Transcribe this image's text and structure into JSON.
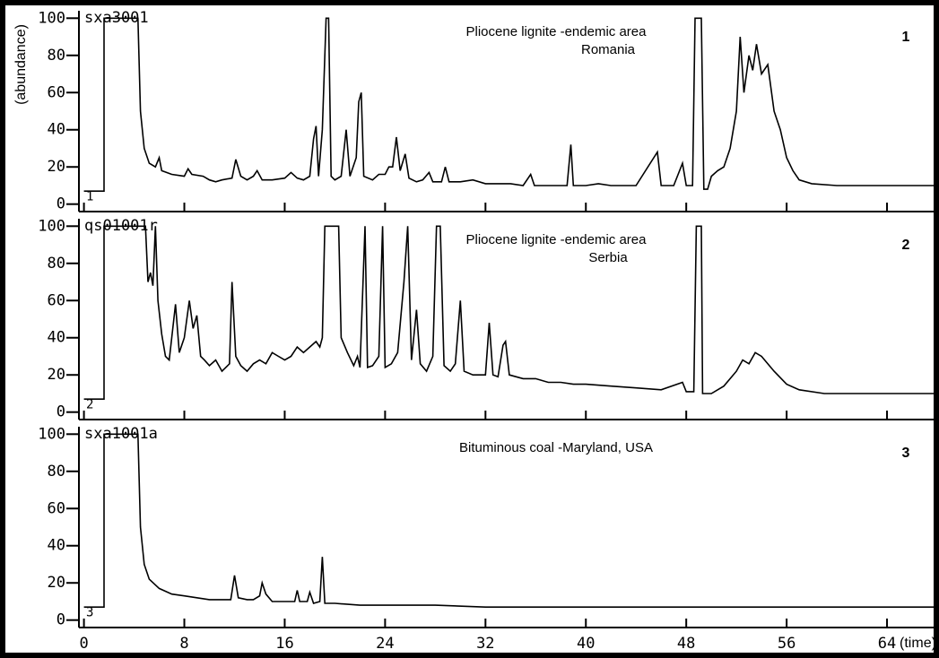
{
  "chart_data": [
    {
      "type": "line",
      "sample": "sxa3001",
      "ylabel": "(abundance)",
      "annotation": [
        "Pliocene lignite -endemic area",
        "Romania"
      ],
      "panel_label": "1",
      "trace_label": "1",
      "xlim": [
        -0.4,
        68
      ],
      "ylim": [
        -4,
        104
      ],
      "xticks": [
        0,
        8,
        16,
        24,
        32,
        40,
        48,
        56,
        64
      ],
      "yticks": [
        0,
        20,
        40,
        60,
        80,
        100
      ],
      "xtick_labels": false,
      "series": [
        {
          "color": "#000000",
          "x": [
            0,
            1.6,
            1.6,
            4.3,
            4.5,
            4.8,
            5.2,
            5.7,
            6.0,
            6.2,
            7,
            8,
            8.3,
            8.6,
            9.5,
            10,
            10.5,
            11,
            11.8,
            12.1,
            12.5,
            13,
            13.5,
            13.8,
            14.2,
            15,
            16,
            16.5,
            17,
            17.5,
            18,
            18.3,
            18.5,
            18.7,
            19,
            19.3,
            19.5,
            19.7,
            20,
            20.5,
            20.9,
            21.2,
            21.7,
            21.9,
            22.1,
            22.3,
            23,
            23.5,
            24,
            24.3,
            24.6,
            24.9,
            25.2,
            25.6,
            25.9,
            26.5,
            27,
            27.5,
            27.8,
            28.5,
            28.8,
            29.1,
            30,
            31,
            32,
            33,
            34,
            35,
            35.6,
            35.9,
            37,
            38.5,
            38.8,
            39,
            40,
            41,
            42,
            44,
            45.7,
            46,
            47,
            47.7,
            48,
            48.5,
            48.7,
            49.2,
            49.4,
            49.7,
            50,
            50.5,
            51,
            51.5,
            52,
            52.3,
            52.6,
            53,
            53.3,
            53.6,
            54,
            54.5,
            55,
            55.5,
            56,
            56.5,
            57,
            58,
            60,
            64,
            68
          ],
          "values": [
            7,
            7,
            100,
            100,
            50,
            30,
            22,
            20,
            25,
            18,
            16,
            15,
            19,
            16,
            15,
            13,
            12,
            13,
            14,
            24,
            15,
            13,
            15,
            18,
            13,
            13,
            14,
            17,
            14,
            13,
            15,
            35,
            42,
            15,
            40,
            100,
            100,
            15,
            13,
            15,
            40,
            15,
            25,
            55,
            60,
            15,
            13,
            16,
            16,
            20,
            20,
            36,
            18,
            27,
            14,
            12,
            13,
            17,
            12,
            12,
            20,
            12,
            12,
            13,
            11,
            11,
            11,
            10,
            16,
            10,
            10,
            10,
            32,
            10,
            10,
            11,
            10,
            10,
            28,
            10,
            10,
            22,
            10,
            10,
            100,
            100,
            8,
            8,
            15,
            18,
            20,
            30,
            50,
            90,
            60,
            80,
            72,
            86,
            70,
            75,
            50,
            40,
            25,
            18,
            13,
            11,
            10,
            10,
            10
          ]
        }
      ]
    },
    {
      "type": "line",
      "sample": "qs01001r",
      "annotation": [
        "Pliocene lignite -endemic area",
        "Serbia"
      ],
      "panel_label": "2",
      "trace_label": "2",
      "xlim": [
        -0.4,
        68
      ],
      "ylim": [
        -4,
        104
      ],
      "xticks": [
        0,
        8,
        16,
        24,
        32,
        40,
        48,
        56,
        64
      ],
      "yticks": [
        0,
        20,
        40,
        60,
        80,
        100
      ],
      "xtick_labels": false,
      "series": [
        {
          "color": "#000000",
          "x": [
            0,
            1.6,
            1.6,
            4.9,
            5.1,
            5.3,
            5.5,
            5.7,
            5.9,
            6.2,
            6.5,
            6.8,
            7,
            7.3,
            7.6,
            8,
            8.4,
            8.7,
            9,
            9.3,
            9.6,
            10,
            10.5,
            11,
            11.6,
            11.8,
            12.1,
            12.5,
            13,
            13.5,
            14,
            14.5,
            15,
            15.5,
            16,
            16.5,
            17,
            17.5,
            18,
            18.5,
            18.8,
            19,
            19.2,
            20.3,
            20.5,
            21,
            21.5,
            21.8,
            22,
            22.4,
            22.6,
            23,
            23.5,
            23.8,
            24,
            24.5,
            25,
            25.5,
            25.8,
            26.1,
            26.5,
            26.8,
            27.3,
            27.8,
            28.1,
            28.4,
            28.7,
            29.2,
            29.6,
            30,
            30.3,
            31,
            32,
            32.3,
            32.6,
            33,
            33.4,
            33.6,
            33.9,
            35,
            36,
            37,
            38,
            39,
            40,
            42,
            44,
            46,
            47.7,
            48,
            48.6,
            48.8,
            49.2,
            49.3,
            50,
            51,
            52,
            52.5,
            53,
            53.5,
            54,
            55,
            56,
            57,
            59,
            62,
            68
          ],
          "values": [
            7,
            7,
            100,
            100,
            70,
            75,
            68,
            100,
            60,
            42,
            30,
            28,
            40,
            58,
            32,
            40,
            60,
            45,
            52,
            30,
            28,
            25,
            28,
            22,
            26,
            70,
            30,
            25,
            22,
            26,
            28,
            26,
            32,
            30,
            28,
            30,
            35,
            32,
            35,
            38,
            35,
            40,
            100,
            100,
            40,
            32,
            25,
            30,
            24,
            100,
            24,
            25,
            30,
            100,
            24,
            26,
            32,
            70,
            100,
            28,
            55,
            26,
            22,
            30,
            100,
            100,
            25,
            22,
            26,
            60,
            22,
            20,
            20,
            48,
            20,
            19,
            36,
            38,
            20,
            18,
            18,
            16,
            16,
            15,
            15,
            14,
            13,
            12,
            16,
            11,
            11,
            100,
            100,
            10,
            10,
            14,
            22,
            28,
            26,
            32,
            30,
            22,
            15,
            12,
            10,
            10,
            10
          ]
        }
      ]
    },
    {
      "type": "line",
      "sample": "sxa1001a",
      "xlabel": "(time)",
      "annotation": [
        "Bituminous coal -Maryland, USA"
      ],
      "panel_label": "3",
      "trace_label": "3",
      "xlim": [
        -0.4,
        68
      ],
      "ylim": [
        -4,
        104
      ],
      "xticks": [
        0,
        8,
        16,
        24,
        32,
        40,
        48,
        56,
        64
      ],
      "yticks": [
        0,
        20,
        40,
        60,
        80,
        100
      ],
      "xtick_labels": true,
      "series": [
        {
          "color": "#000000",
          "x": [
            0,
            1.6,
            1.6,
            4.3,
            4.5,
            4.8,
            5.2,
            6,
            7,
            8,
            9,
            10,
            11,
            11.7,
            12,
            12.3,
            13,
            13.5,
            14,
            14.2,
            14.5,
            15,
            16,
            16.8,
            17,
            17.2,
            17.8,
            18,
            18.3,
            18.8,
            19,
            19.2,
            20,
            22,
            24,
            28,
            32,
            40,
            48,
            56,
            68
          ],
          "values": [
            7,
            7,
            100,
            100,
            50,
            30,
            22,
            17,
            14,
            13,
            12,
            11,
            11,
            11,
            24,
            12,
            11,
            11,
            13,
            20,
            14,
            10,
            10,
            10,
            16,
            10,
            10,
            15,
            9,
            10,
            34,
            9,
            9,
            8,
            8,
            8,
            7,
            7,
            7,
            7,
            7
          ]
        }
      ]
    }
  ]
}
